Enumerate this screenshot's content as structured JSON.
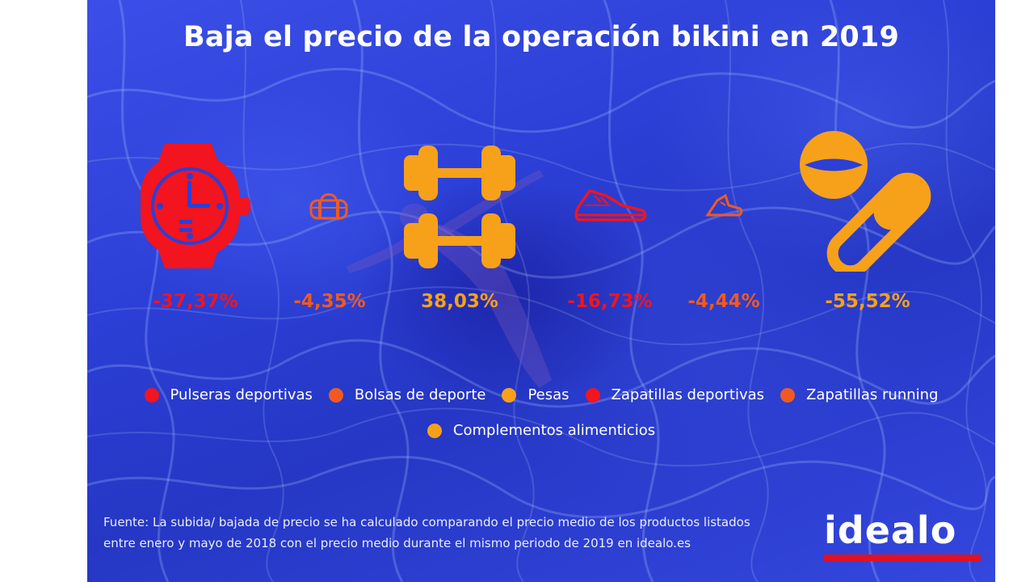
{
  "title": "Baja el precio de la operación bikini en 2019",
  "chart_data": {
    "type": "table",
    "categories": [
      "Pulseras deportivas",
      "Bolsas de deporte",
      "Pesas",
      "Zapatillas deportivas",
      "Zapatillas running",
      "Complementos alimenticios"
    ],
    "values": [
      -37.37,
      -4.35,
      38.03,
      -16.73,
      -4.44,
      -55.52
    ],
    "value_labels": [
      "-37,37%",
      "-4,35%",
      "38,03%",
      "-16,73%",
      "-4,44%",
      "-55,52%"
    ],
    "colors": [
      "#f2141f",
      "#f05a22",
      "#f7a11a",
      "#f2141f",
      "#f05a22",
      "#f7a11a"
    ],
    "icons": [
      "watch-icon",
      "gym-bag-icon",
      "dumbbell-icon",
      "sneaker-icon",
      "running-shoe-icon",
      "pill-icon"
    ],
    "legend_placement": "bottom-center"
  },
  "source": "Fuente: La subida/ bajada de precio se ha calculado comparando el precio medio de los productos listados entre enero y mayo de 2018 con el precio medio durante el mismo periodo de 2019 en idealo.es",
  "logo_text": "idealo",
  "colors": {
    "background": "#2c3fd6",
    "red": "#f2141f",
    "dark_orange": "#f05a22",
    "orange": "#f7a11a",
    "logo_underline": "#e3101f"
  }
}
